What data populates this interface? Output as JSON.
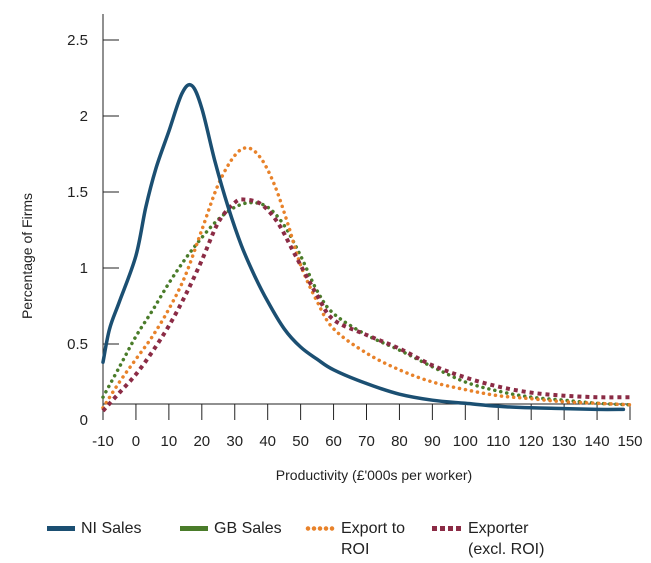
{
  "chart_data": {
    "type": "line",
    "title": "",
    "xlabel": "Productivity (£'000s per worker)",
    "ylabel": "Percentage of Firms",
    "x_ticks": [
      "-10",
      "0",
      "10",
      "20",
      "30",
      "40",
      "50",
      "60",
      "70",
      "80",
      "90",
      "100",
      "110",
      "120",
      "130",
      "140",
      "150"
    ],
    "y_ticks": [
      "0",
      "0.5",
      "1",
      "1.5",
      "2",
      "2.5"
    ],
    "xlim": [
      -10,
      150
    ],
    "ylim": [
      0,
      2.5
    ],
    "grid": false,
    "legend_position": "bottom",
    "series": [
      {
        "name": "NI Sales",
        "color": "#1b4f72",
        "style": "solid",
        "points": [
          [
            -10,
            0.38
          ],
          [
            -8,
            0.6
          ],
          [
            -5,
            0.78
          ],
          [
            0,
            1.08
          ],
          [
            3,
            1.4
          ],
          [
            6,
            1.65
          ],
          [
            10,
            1.9
          ],
          [
            14,
            2.15
          ],
          [
            17,
            2.2
          ],
          [
            20,
            2.05
          ],
          [
            24,
            1.7
          ],
          [
            28,
            1.4
          ],
          [
            32,
            1.15
          ],
          [
            36,
            0.95
          ],
          [
            40,
            0.78
          ],
          [
            45,
            0.6
          ],
          [
            50,
            0.48
          ],
          [
            55,
            0.4
          ],
          [
            60,
            0.33
          ],
          [
            70,
            0.24
          ],
          [
            80,
            0.17
          ],
          [
            90,
            0.13
          ],
          [
            100,
            0.11
          ],
          [
            110,
            0.09
          ],
          [
            120,
            0.08
          ],
          [
            130,
            0.075
          ],
          [
            140,
            0.07
          ],
          [
            148,
            0.07
          ]
        ]
      },
      {
        "name": "GB Sales",
        "color": "#4a7c2a",
        "style": "dotted",
        "points": [
          [
            -10,
            0.15
          ],
          [
            -5,
            0.35
          ],
          [
            0,
            0.55
          ],
          [
            5,
            0.72
          ],
          [
            10,
            0.9
          ],
          [
            15,
            1.06
          ],
          [
            20,
            1.2
          ],
          [
            25,
            1.32
          ],
          [
            30,
            1.4
          ],
          [
            35,
            1.43
          ],
          [
            40,
            1.4
          ],
          [
            45,
            1.28
          ],
          [
            50,
            1.08
          ],
          [
            55,
            0.85
          ],
          [
            60,
            0.7
          ],
          [
            70,
            0.56
          ],
          [
            80,
            0.46
          ],
          [
            90,
            0.35
          ],
          [
            100,
            0.25
          ],
          [
            110,
            0.19
          ],
          [
            120,
            0.15
          ],
          [
            130,
            0.13
          ],
          [
            140,
            0.11
          ],
          [
            150,
            0.1
          ]
        ]
      },
      {
        "name": "Export to ROI",
        "color": "#e8822a",
        "style": "dotted",
        "points": [
          [
            -10,
            0.08
          ],
          [
            -5,
            0.25
          ],
          [
            0,
            0.4
          ],
          [
            5,
            0.55
          ],
          [
            10,
            0.73
          ],
          [
            15,
            0.95
          ],
          [
            20,
            1.25
          ],
          [
            25,
            1.55
          ],
          [
            30,
            1.74
          ],
          [
            34,
            1.79
          ],
          [
            38,
            1.72
          ],
          [
            42,
            1.55
          ],
          [
            46,
            1.3
          ],
          [
            50,
            1.02
          ],
          [
            55,
            0.78
          ],
          [
            60,
            0.6
          ],
          [
            70,
            0.44
          ],
          [
            80,
            0.33
          ],
          [
            90,
            0.25
          ],
          [
            100,
            0.2
          ],
          [
            110,
            0.16
          ],
          [
            120,
            0.14
          ],
          [
            130,
            0.12
          ],
          [
            140,
            0.11
          ],
          [
            150,
            0.1
          ]
        ]
      },
      {
        "name": "Exporter (excl. ROI)",
        "color": "#8b2b45",
        "style": "dashed",
        "points": [
          [
            -10,
            0.06
          ],
          [
            -5,
            0.18
          ],
          [
            0,
            0.3
          ],
          [
            5,
            0.45
          ],
          [
            10,
            0.62
          ],
          [
            15,
            0.82
          ],
          [
            20,
            1.05
          ],
          [
            25,
            1.3
          ],
          [
            30,
            1.43
          ],
          [
            33,
            1.45
          ],
          [
            38,
            1.42
          ],
          [
            43,
            1.3
          ],
          [
            48,
            1.1
          ],
          [
            55,
            0.82
          ],
          [
            60,
            0.66
          ],
          [
            70,
            0.56
          ],
          [
            80,
            0.47
          ],
          [
            90,
            0.36
          ],
          [
            100,
            0.28
          ],
          [
            110,
            0.22
          ],
          [
            120,
            0.18
          ],
          [
            130,
            0.16
          ],
          [
            140,
            0.15
          ],
          [
            150,
            0.15
          ]
        ]
      }
    ]
  },
  "legend": {
    "items": [
      {
        "label_line1": "NI Sales",
        "label_line2": ""
      },
      {
        "label_line1": "GB Sales",
        "label_line2": ""
      },
      {
        "label_line1": "Export to",
        "label_line2": "ROI"
      },
      {
        "label_line1": "Exporter",
        "label_line2": "(excl. ROI)"
      }
    ]
  }
}
